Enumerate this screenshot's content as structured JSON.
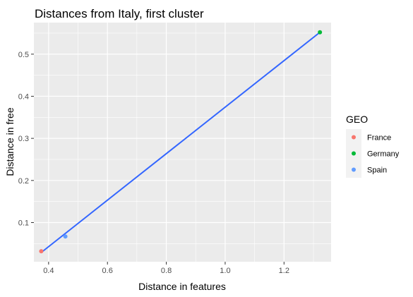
{
  "chart_data": {
    "type": "scatter",
    "title": "Distances from Italy, first cluster",
    "xlabel": "Distance in features",
    "ylabel": "Distance in free",
    "xlim": [
      0.35,
      1.36
    ],
    "ylim": [
      0.007,
      0.575
    ],
    "x_ticks": [
      0.4,
      0.6,
      0.8,
      1.0,
      1.2
    ],
    "x_tick_labels": [
      "0.4",
      "0.6",
      "0.8",
      "1.0",
      "1.2"
    ],
    "y_ticks": [
      0.1,
      0.2,
      0.3,
      0.4,
      0.5
    ],
    "y_tick_labels": [
      "0.1",
      "0.2",
      "0.3",
      "0.4",
      "0.5"
    ],
    "grid": true,
    "legend": {
      "title": "GEO",
      "placement": "right"
    },
    "series": [
      {
        "name": "France",
        "color": "#F8766D",
        "points": [
          {
            "x": 0.375,
            "y": 0.032
          }
        ]
      },
      {
        "name": "Germany",
        "color": "#00BA38",
        "points": [
          {
            "x": 1.322,
            "y": 0.552
          }
        ]
      },
      {
        "name": "Spain",
        "color": "#619CFF",
        "points": [
          {
            "x": 0.457,
            "y": 0.067
          }
        ]
      }
    ],
    "fit_line": {
      "color": "#3366FF",
      "from": {
        "x": 0.375,
        "y": 0.029
      },
      "to": {
        "x": 1.322,
        "y": 0.552
      }
    }
  }
}
